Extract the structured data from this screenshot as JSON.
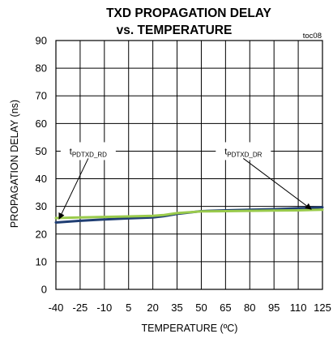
{
  "chart_data": {
    "type": "line",
    "title_line1": "TXD PROPAGATION DELAY",
    "title_line2": "vs. TEMPERATURE",
    "code": "toc08",
    "xlabel": "TEMPERATURE (ºC)",
    "ylabel": "PROPAGATION DELAY (ns)",
    "xlim": [
      -40,
      125
    ],
    "ylim": [
      0,
      90
    ],
    "x_ticks": [
      -40,
      -25,
      -10,
      5,
      20,
      35,
      50,
      65,
      80,
      95,
      110,
      125
    ],
    "y_ticks": [
      0,
      10,
      20,
      30,
      40,
      50,
      60,
      70,
      80,
      90
    ],
    "x_tick_labels": [
      "-40",
      "-25",
      "-10",
      "5",
      "20",
      "35",
      "50",
      "65",
      "80",
      "95",
      "110",
      "125"
    ],
    "y_tick_labels": [
      "0",
      "10",
      "20",
      "30",
      "40",
      "50",
      "60",
      "70",
      "80",
      "90"
    ],
    "grid": true,
    "series": [
      {
        "name": "tPDTXD_DR",
        "color": "#1f3e73",
        "x": [
          -40,
          -25,
          -10,
          5,
          20,
          27,
          35,
          50,
          65,
          80,
          95,
          110,
          125
        ],
        "y": [
          24.2,
          24.8,
          25.3,
          25.7,
          26.0,
          26.5,
          27.3,
          28.3,
          28.6,
          28.8,
          29.0,
          29.3,
          29.7
        ]
      },
      {
        "name": "tPDTXD_RD",
        "color": "#9acb4c",
        "x": [
          -40,
          -25,
          -10,
          5,
          20,
          27,
          35,
          50,
          65,
          80,
          95,
          110,
          125
        ],
        "y": [
          25.8,
          26.0,
          26.2,
          26.4,
          26.6,
          26.9,
          27.6,
          28.2,
          28.3,
          28.4,
          28.5,
          28.6,
          28.8
        ]
      }
    ],
    "annotations": [
      {
        "main": "t",
        "sub": "PDTXD_RD",
        "box_x": -20,
        "box_y": 50,
        "arrow_to": [
          -38,
          25.5
        ]
      },
      {
        "main": "t",
        "sub": "PDTXD_DR",
        "box_x": 76,
        "box_y": 50,
        "arrow_to": [
          118,
          29.0
        ]
      }
    ]
  }
}
